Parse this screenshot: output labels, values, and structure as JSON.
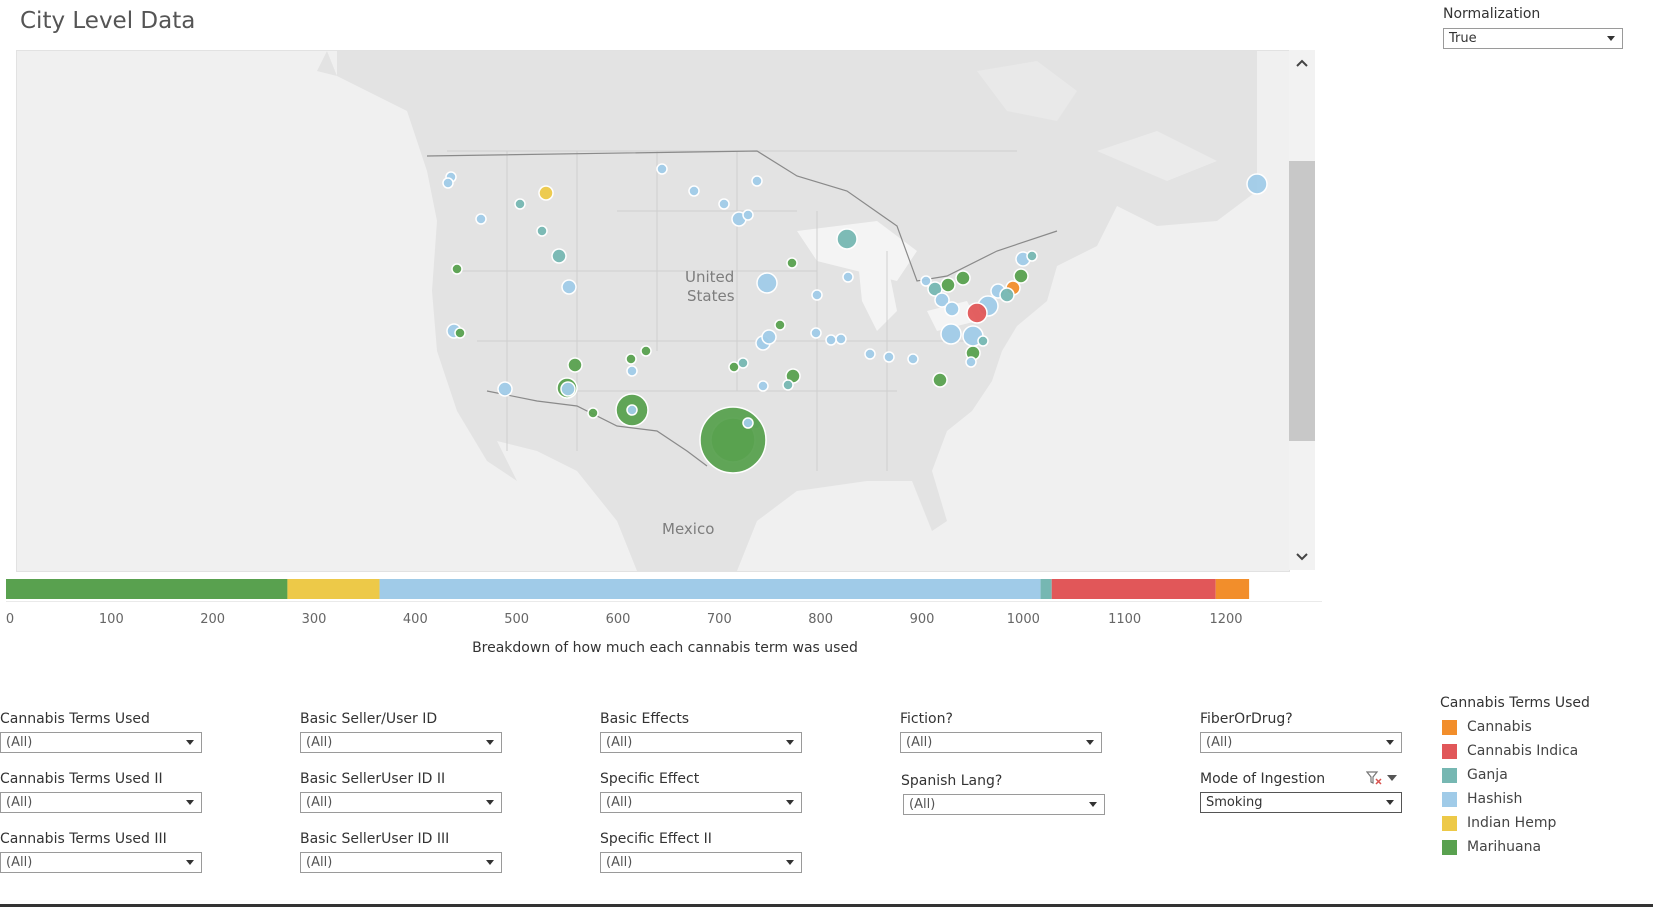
{
  "page": {
    "title": "City Level Data"
  },
  "map": {
    "labels": {
      "us_line1": "United",
      "us_line2": "States",
      "mexico": "Mexico"
    },
    "colors": {
      "land": "#e3e3e3",
      "water": "#ffffff",
      "border": "#d4d4d4",
      "country_border": "#8a8a8a"
    },
    "markers": [
      {
        "term": "Hashish",
        "size": "small"
      },
      {
        "term": "Hashish",
        "size": "small"
      },
      {
        "term": "Indian Hemp",
        "size": "medium"
      },
      {
        "term": "Ganja",
        "size": "small"
      },
      {
        "term": "Hashish",
        "size": "small"
      },
      {
        "term": "Ganja",
        "size": "small"
      },
      {
        "term": "Ganja",
        "size": "medium"
      },
      {
        "term": "Hashish",
        "size": "medium"
      },
      {
        "term": "Marihuana",
        "size": "small"
      },
      {
        "term": "Hashish",
        "size": "medium"
      },
      {
        "term": "Marihuana",
        "size": "small"
      },
      {
        "term": "Hashish",
        "size": "medium"
      },
      {
        "term": "Hashish",
        "size": "small"
      },
      {
        "term": "Hashish",
        "size": "small"
      },
      {
        "term": "Hashish",
        "size": "small"
      },
      {
        "term": "Hashish",
        "size": "small"
      },
      {
        "term": "Hashish",
        "size": "medium"
      },
      {
        "term": "Hashish",
        "size": "small"
      },
      {
        "term": "Hashish",
        "size": "large"
      },
      {
        "term": "Ganja",
        "size": "large"
      },
      {
        "term": "Marihuana",
        "size": "small"
      },
      {
        "term": "Hashish",
        "size": "small"
      },
      {
        "term": "Hashish",
        "size": "small"
      },
      {
        "term": "Marihuana",
        "size": "small"
      },
      {
        "term": "Hashish",
        "size": "medium"
      },
      {
        "term": "Hashish",
        "size": "medium"
      },
      {
        "term": "Hashish",
        "size": "small"
      },
      {
        "term": "Marihuana",
        "size": "medium"
      },
      {
        "term": "Marihuana",
        "size": "small"
      },
      {
        "term": "Marihuana",
        "size": "small"
      },
      {
        "term": "Hashish",
        "size": "small"
      },
      {
        "term": "Marihuana",
        "size": "small"
      },
      {
        "term": "Ganja",
        "size": "small"
      },
      {
        "term": "Marihuana",
        "size": "large"
      },
      {
        "term": "Hashish",
        "size": "medium"
      },
      {
        "term": "Marihuana",
        "size": "small"
      },
      {
        "term": "Marihuana",
        "size": "xl"
      },
      {
        "term": "Hashish",
        "size": "small"
      },
      {
        "term": "Marihuana",
        "size": "xxl"
      },
      {
        "term": "Hashish",
        "size": "small"
      },
      {
        "term": "Hashish",
        "size": "small"
      },
      {
        "term": "Marihuana",
        "size": "huge"
      },
      {
        "term": "Hashish",
        "size": "small"
      },
      {
        "term": "Marihuana",
        "size": "medium"
      },
      {
        "term": "Ganja",
        "size": "small"
      },
      {
        "term": "Hashish",
        "size": "small"
      },
      {
        "term": "Hashish",
        "size": "small"
      },
      {
        "term": "Hashish",
        "size": "small"
      },
      {
        "term": "Marihuana",
        "size": "medium"
      },
      {
        "term": "Ganja",
        "size": "medium"
      },
      {
        "term": "Marihuana",
        "size": "medium"
      },
      {
        "term": "Hashish",
        "size": "medium"
      },
      {
        "term": "Hashish",
        "size": "medium"
      },
      {
        "term": "Hashish",
        "size": "small"
      },
      {
        "term": "Hashish",
        "size": "small"
      },
      {
        "term": "Marihuana",
        "size": "medium"
      },
      {
        "term": "Hashish",
        "size": "small"
      },
      {
        "term": "Hashish",
        "size": "small"
      },
      {
        "term": "Hashish",
        "size": "medium"
      },
      {
        "term": "Cannabis",
        "size": "medium"
      },
      {
        "term": "Ganja",
        "size": "medium"
      },
      {
        "term": "Hashish",
        "size": "large"
      },
      {
        "term": "Cannabis Indica",
        "size": "large"
      },
      {
        "term": "Hashish",
        "size": "large"
      },
      {
        "term": "Ganja",
        "size": "small"
      },
      {
        "term": "Marihuana",
        "size": "medium"
      },
      {
        "term": "Hashish",
        "size": "large"
      },
      {
        "term": "Marihuana",
        "size": "medium"
      },
      {
        "term": "Hashish",
        "size": "medium"
      },
      {
        "term": "Ganja",
        "size": "small"
      },
      {
        "term": "Hashish",
        "size": "large"
      }
    ]
  },
  "normalization": {
    "label": "Normalization",
    "value": "True"
  },
  "chart_data": {
    "type": "bar",
    "orientation": "horizontal-stacked",
    "xlabel": "Breakdown of how much each cannabis term was used",
    "xlim": [
      0,
      1300
    ],
    "ticks": [
      0,
      100,
      200,
      300,
      400,
      500,
      600,
      700,
      800,
      900,
      1000,
      1100,
      1200
    ],
    "series": [
      {
        "name": "Marihuana",
        "value": 278,
        "color": "#59a14f"
      },
      {
        "name": "Indian Hemp",
        "value": 91,
        "color": "#edc948"
      },
      {
        "name": "Hashish",
        "value": 653,
        "color": "#a0cbe8"
      },
      {
        "name": "Ganja",
        "value": 11,
        "color": "#76b7b2"
      },
      {
        "name": "Cannabis Indica",
        "value": 162,
        "color": "#e15759"
      },
      {
        "name": "Cannabis",
        "value": 33,
        "color": "#f28e2b"
      }
    ]
  },
  "filters": [
    {
      "label": "Cannabis Terms Used",
      "value": "(All)"
    },
    {
      "label": "Basic Seller/User ID",
      "value": "(All)"
    },
    {
      "label": "Basic Effects",
      "value": "(All)"
    },
    {
      "label": "Fiction?",
      "value": "(All)"
    },
    {
      "label": "FiberOrDrug?",
      "value": "(All)"
    },
    {
      "label": "Cannabis Terms Used II",
      "value": "(All)"
    },
    {
      "label": "Basic SellerUser ID II",
      "value": "(All)"
    },
    {
      "label": "Specific Effect",
      "value": "(All)"
    },
    {
      "label": "Spanish Lang?",
      "value": "(All)"
    },
    {
      "label": "Mode of Ingestion",
      "value": "Smoking"
    },
    {
      "label": "Cannabis Terms Used III",
      "value": "(All)"
    },
    {
      "label": "Basic SellerUser ID III",
      "value": "(All)"
    },
    {
      "label": "Specific Effect II",
      "value": "(All)"
    }
  ],
  "legend": {
    "title": "Cannabis Terms Used",
    "items": [
      {
        "name": "Cannabis",
        "color": "#f28e2b"
      },
      {
        "name": "Cannabis Indica",
        "color": "#e15759"
      },
      {
        "name": "Ganja",
        "color": "#76b7b2"
      },
      {
        "name": "Hashish",
        "color": "#a0cbe8"
      },
      {
        "name": "Indian Hemp",
        "color": "#edc948"
      },
      {
        "name": "Marihuana",
        "color": "#59a14f"
      }
    ]
  },
  "icons": {
    "scroll_up": "chevron-up-icon",
    "scroll_down": "chevron-down-icon",
    "filter_clear": "filter-clear-icon",
    "menu": "dropdown-menu-icon"
  }
}
